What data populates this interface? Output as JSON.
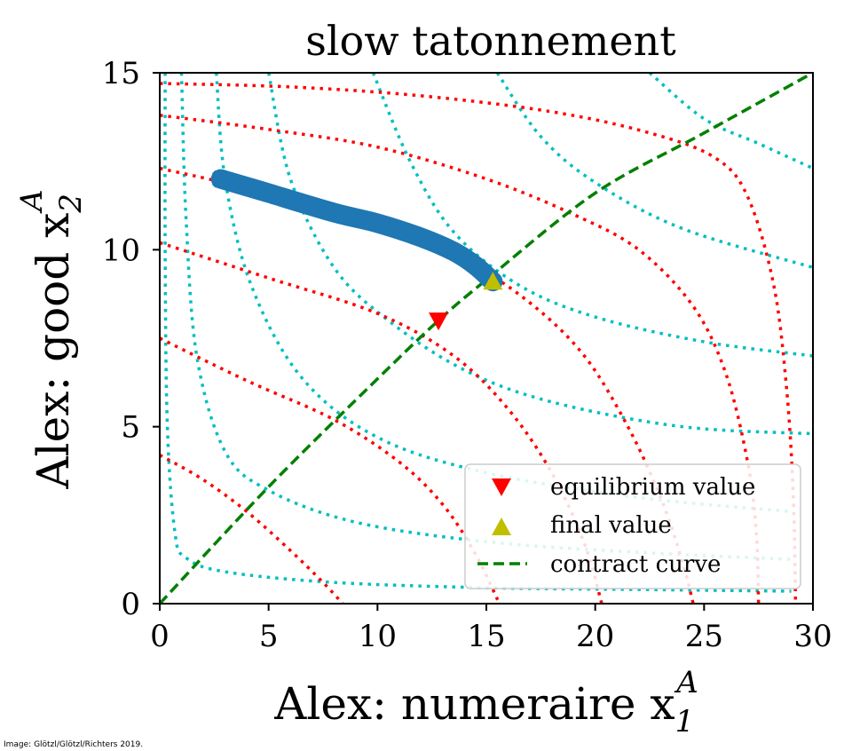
{
  "chart_data": {
    "type": "line",
    "title": "slow tatonnement",
    "xlabel": "Alex: numeraire x",
    "xlabel_var": "1",
    "xlabel_sup": "A",
    "ylabel": "Alex: good x",
    "ylabel_var": "2",
    "ylabel_sup": "A",
    "xlim": [
      0,
      30
    ],
    "ylim": [
      0,
      15
    ],
    "xticks": [
      0,
      5,
      10,
      15,
      20,
      25,
      30
    ],
    "yticks": [
      0,
      5,
      10,
      15
    ],
    "xtick_labels": [
      "0",
      "5",
      "10",
      "15",
      "20",
      "25",
      "30"
    ],
    "ytick_labels": [
      "0",
      "5",
      "10",
      "15"
    ],
    "grid": false,
    "legend_placement": "lower-right",
    "colors": {
      "alex_indifference": "#ff0000",
      "beth_indifference": "#00bfbf",
      "path": "#1f77b4",
      "equilibrium": "#ff0000",
      "final": "#bfbf00",
      "contract": "#008000"
    },
    "series": [
      {
        "name": "equilibrium value",
        "marker": "triangle-down",
        "points": [
          [
            12.8,
            8.0
          ]
        ]
      },
      {
        "name": "final value",
        "marker": "triangle-up",
        "points": [
          [
            15.3,
            9.1
          ]
        ]
      },
      {
        "name": "contract curve",
        "style": "dashed",
        "points": [
          [
            0,
            0
          ],
          [
            5,
            3.3
          ],
          [
            10,
            6.35
          ],
          [
            12.8,
            8.0
          ],
          [
            15,
            9.15
          ],
          [
            20,
            11.6
          ],
          [
            25,
            13.3
          ],
          [
            30,
            15
          ]
        ]
      }
    ],
    "adjustment_path": [
      [
        2.8,
        12.0
      ],
      [
        5,
        11.6
      ],
      [
        8,
        11.05
      ],
      [
        10,
        10.75
      ],
      [
        12,
        10.35
      ],
      [
        13.5,
        9.95
      ],
      [
        14.5,
        9.55
      ],
      [
        15.3,
        9.1
      ]
    ],
    "indifference_curves_alex": [
      [
        [
          0,
          4.2
        ],
        [
          2,
          3.5
        ],
        [
          4,
          2.6
        ],
        [
          6,
          1.5
        ],
        [
          7.5,
          0.6
        ],
        [
          8.4,
          0
        ]
      ],
      [
        [
          0,
          7.5
        ],
        [
          4,
          6.3
        ],
        [
          8,
          5.2
        ],
        [
          11,
          4.0
        ],
        [
          13,
          2.8
        ],
        [
          14.5,
          1.4
        ],
        [
          15.6,
          0
        ]
      ],
      [
        [
          0,
          10.2
        ],
        [
          5,
          9.2
        ],
        [
          10,
          8.2
        ],
        [
          13.5,
          7.0
        ],
        [
          16,
          5.5
        ],
        [
          18,
          3.7
        ],
        [
          19.5,
          1.7
        ],
        [
          20.3,
          0
        ]
      ],
      [
        [
          0,
          12.3
        ],
        [
          5,
          11.6
        ],
        [
          10,
          10.7
        ],
        [
          14,
          9.7
        ],
        [
          17,
          8.5
        ],
        [
          19.5,
          7.0
        ],
        [
          21.5,
          5.0
        ],
        [
          23,
          3.0
        ],
        [
          24,
          1.2
        ],
        [
          24.5,
          0
        ]
      ],
      [
        [
          0,
          13.8
        ],
        [
          5,
          13.4
        ],
        [
          10,
          12.9
        ],
        [
          15,
          12.0
        ],
        [
          19,
          11.0
        ],
        [
          22,
          10.0
        ],
        [
          24.5,
          8.4
        ],
        [
          26,
          6.5
        ],
        [
          27,
          4.0
        ],
        [
          27.4,
          2.0
        ],
        [
          27.5,
          0
        ]
      ],
      [
        [
          0,
          14.7
        ],
        [
          6,
          14.6
        ],
        [
          12,
          14.35
        ],
        [
          18,
          13.9
        ],
        [
          22.5,
          13.3
        ],
        [
          25.5,
          12.6
        ],
        [
          27,
          11.5
        ],
        [
          28.2,
          9.0
        ],
        [
          28.8,
          6.0
        ],
        [
          29.1,
          3.0
        ],
        [
          29.2,
          0
        ]
      ]
    ],
    "indifference_curves_beth": [
      [
        [
          0.25,
          15
        ],
        [
          0.25,
          10
        ],
        [
          0.35,
          5
        ],
        [
          0.7,
          2
        ],
        [
          1.2,
          1.3
        ],
        [
          3,
          0.9
        ],
        [
          8,
          0.6
        ],
        [
          15,
          0.45
        ],
        [
          22,
          0.4
        ],
        [
          29,
          0.35
        ]
      ],
      [
        [
          1,
          15
        ],
        [
          1.2,
          11
        ],
        [
          1.7,
          7
        ],
        [
          3,
          4.3
        ],
        [
          5,
          3.2
        ],
        [
          9,
          2.3
        ],
        [
          15,
          1.75
        ],
        [
          22,
          1.45
        ],
        [
          29,
          1.25
        ]
      ],
      [
        [
          2.6,
          15
        ],
        [
          3,
          12
        ],
        [
          4.2,
          9
        ],
        [
          6.5,
          6.4
        ],
        [
          10,
          4.7
        ],
        [
          15,
          3.7
        ],
        [
          22,
          3.0
        ],
        [
          29,
          2.6
        ]
      ],
      [
        [
          5,
          15
        ],
        [
          6,
          12
        ],
        [
          8,
          9.5
        ],
        [
          10.5,
          8
        ],
        [
          14,
          6.6
        ],
        [
          18,
          5.7
        ],
        [
          24,
          5.0
        ],
        [
          30,
          4.8
        ]
      ],
      [
        [
          9.8,
          15
        ],
        [
          11.5,
          12.5
        ],
        [
          13.5,
          10.5
        ],
        [
          16.5,
          9.0
        ],
        [
          20,
          8.1
        ],
        [
          25,
          7.4
        ],
        [
          30,
          7.0
        ]
      ],
      [
        [
          15.5,
          15
        ],
        [
          17.5,
          13.2
        ],
        [
          20,
          11.9
        ],
        [
          24,
          10.6
        ],
        [
          30,
          9.5
        ]
      ],
      [
        [
          22.5,
          15
        ],
        [
          25,
          13.7
        ],
        [
          27.5,
          13.0
        ],
        [
          30,
          12.3
        ]
      ]
    ],
    "credit": "Image: Glötzl/Glötzl/Richters 2019."
  }
}
